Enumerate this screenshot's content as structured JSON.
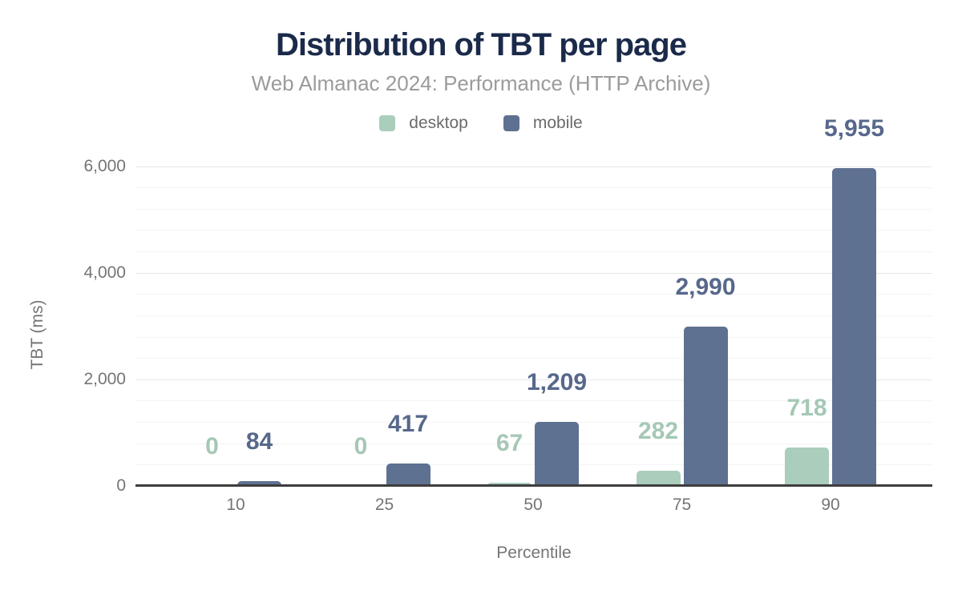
{
  "header": {
    "title": "Distribution of TBT per page",
    "subtitle": "Web Almanac 2024: Performance (HTTP Archive)"
  },
  "chart_data": {
    "type": "bar",
    "title": "Distribution of TBT per page",
    "subtitle": "Web Almanac 2024: Performance (HTTP Archive)",
    "xlabel": "Percentile",
    "ylabel": "TBT (ms)",
    "categories": [
      "10",
      "25",
      "50",
      "75",
      "90"
    ],
    "series": [
      {
        "name": "desktop",
        "color": "#abcdbb",
        "label_color": "#a5c8b5",
        "values": [
          0,
          0,
          67,
          282,
          718
        ],
        "labels": [
          "0",
          "0",
          "67",
          "282",
          "718"
        ]
      },
      {
        "name": "mobile",
        "color": "#5f7190",
        "label_color": "#57688b",
        "values": [
          84,
          417,
          1209,
          2990,
          5955
        ],
        "labels": [
          "84",
          "417",
          "1,209",
          "2,990",
          "5,955"
        ]
      }
    ],
    "ylim": [
      0,
      6000
    ],
    "yticks": [
      0,
      2000,
      4000,
      6000
    ],
    "ytick_labels": [
      "0",
      "2,000",
      "4,000",
      "6,000"
    ],
    "minor_gridline_step": 400,
    "grid": true,
    "legend_position": "top",
    "colors": {
      "title": "#1b2a4a",
      "subtitle": "#9b9b9b",
      "axis_text": "#757575",
      "axis_line": "#3d3d3d",
      "major_gridline": "#e7e7e7",
      "minor_gridline": "#f4f4f4"
    }
  }
}
